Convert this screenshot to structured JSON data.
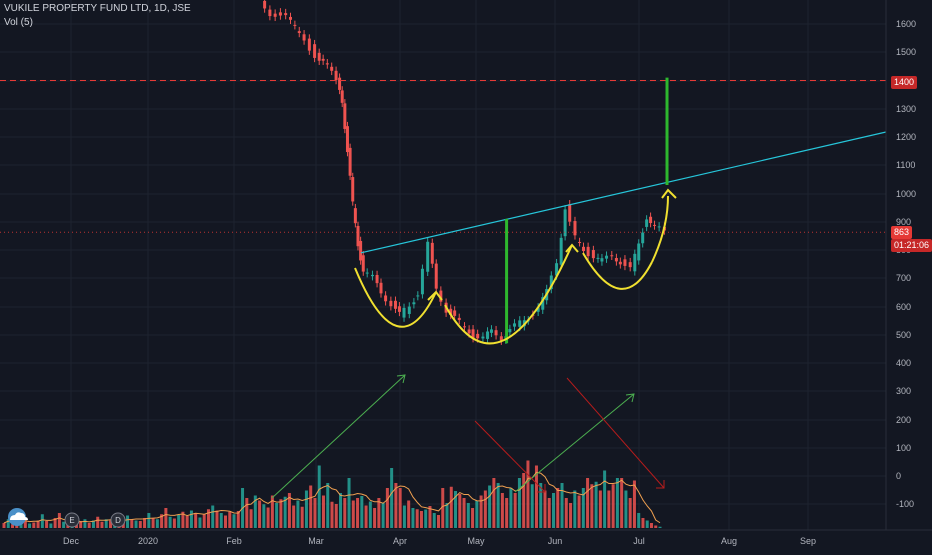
{
  "header": {
    "symbol_title": "VUKILE PROPERTY FUND LTD, 1D, JSE",
    "volume_label": "Vol (5)"
  },
  "price_badges": {
    "target": "1400",
    "last": "863",
    "countdown": "01:21:06"
  },
  "colors": {
    "background": "#131722",
    "grid": "#1e2330",
    "up": "#26a69a",
    "down": "#ef5350",
    "trendline": "#26c6da",
    "pattern": "#f0e030",
    "target_bar": "#2eb82e",
    "target_line": "#e53935",
    "volume_ma": "#f0a050",
    "arrow_green": "#4caf50",
    "arrow_red": "#b71c1c"
  },
  "chart_data": [
    {
      "type": "candlestick",
      "title": "VUKILE PROPERTY FUND LTD, 1D, JSE",
      "price_axis_ticks": [
        "1600",
        "1500",
        "1400",
        "1300",
        "1200",
        "1100",
        "1000",
        "900",
        "800",
        "700",
        "600",
        "500",
        "400",
        "300",
        "200",
        "100",
        "0",
        "-100"
      ],
      "price_range": [
        -200,
        1700
      ],
      "time_axis_ticks": [
        "Dec",
        "2020",
        "Feb",
        "Mar",
        "Apr",
        "May",
        "Jun",
        "Jul",
        "Aug",
        "Sep"
      ],
      "grid": true,
      "last_price": 863,
      "resistance_level": 1400,
      "neckline": {
        "points": [
          [
            "2020-03-19",
            790
          ],
          [
            "2020-05-13",
            910
          ],
          [
            "2020-06-05",
            955
          ],
          [
            "2020-07-13",
            1030
          ]
        ]
      },
      "pattern_targets": [
        {
          "date": "2020-05-13",
          "from": 910,
          "to": 470
        },
        {
          "date": "2020-07-13",
          "from": 1030,
          "to": 1410
        }
      ],
      "series": [
        {
          "name": "price",
          "points": [
            [
              "2020-02-10",
              1680
            ],
            [
              "2020-02-14",
              1640
            ],
            [
              "2020-02-20",
              1620
            ],
            [
              "2020-02-25",
              1570
            ],
            [
              "2020-03-02",
              1490
            ],
            [
              "2020-03-05",
              1470
            ],
            [
              "2020-03-10",
              1400
            ],
            [
              "2020-03-12",
              1330
            ],
            [
              "2020-03-14",
              1150
            ],
            [
              "2020-03-16",
              960
            ],
            [
              "2020-03-18",
              820
            ],
            [
              "2020-03-20",
              730
            ],
            [
              "2020-03-24",
              700
            ],
            [
              "2020-03-27",
              650
            ],
            [
              "2020-03-31",
              610
            ],
            [
              "2020-04-03",
              570
            ],
            [
              "2020-04-07",
              600
            ],
            [
              "2020-04-10",
              650
            ],
            [
              "2020-04-14",
              820
            ],
            [
              "2020-04-17",
              660
            ],
            [
              "2020-04-21",
              590
            ],
            [
              "2020-04-24",
              560
            ],
            [
              "2020-04-28",
              520
            ],
            [
              "2020-05-01",
              500
            ],
            [
              "2020-05-05",
              490
            ],
            [
              "2020-05-08",
              510
            ],
            [
              "2020-05-12",
              490
            ],
            [
              "2020-05-15",
              520
            ],
            [
              "2020-05-19",
              540
            ],
            [
              "2020-05-22",
              560
            ],
            [
              "2020-05-26",
              600
            ],
            [
              "2020-05-29",
              650
            ],
            [
              "2020-06-02",
              760
            ],
            [
              "2020-06-05",
              950
            ],
            [
              "2020-06-09",
              840
            ],
            [
              "2020-06-12",
              800
            ],
            [
              "2020-06-16",
              780
            ],
            [
              "2020-06-19",
              760
            ],
            [
              "2020-06-23",
              780
            ],
            [
              "2020-06-26",
              760
            ],
            [
              "2020-06-30",
              730
            ],
            [
              "2020-07-03",
              820
            ],
            [
              "2020-07-06",
              920
            ],
            [
              "2020-07-09",
              880
            ],
            [
              "2020-07-13",
              863
            ]
          ]
        }
      ]
    },
    {
      "type": "bar",
      "title": "Vol (5)",
      "y_ticks": [
        "300",
        "200",
        "100",
        "0",
        "-100"
      ],
      "series": [
        {
          "name": "volume",
          "values": [
            20,
            35,
            15,
            30,
            25,
            40,
            18,
            22,
            30,
            55,
            28,
            18,
            40,
            60,
            25,
            30,
            18,
            22,
            28,
            35,
            20,
            30,
            45,
            25,
            35,
            30,
            18,
            28,
            38,
            50,
            35,
            30,
            28,
            40,
            60,
            40,
            35,
            55,
            80,
            45,
            38,
            52,
            65,
            48,
            70,
            60,
            42,
            55,
            75,
            90,
            70,
            60,
            50,
            65,
            55,
            68,
            160,
            120,
            75,
            130,
            110,
            95,
            82,
            130,
            100,
            115,
            125,
            140,
            90,
            110,
            85,
            150,
            170,
            120,
            250,
            130,
            180,
            105,
            96,
            140,
            120,
            200,
            110,
            120,
            128,
            90,
            106,
            80,
            120,
            100,
            160,
            240,
            180,
            160,
            90,
            110,
            80,
            75,
            68,
            74,
            88,
            60,
            52,
            160,
            100,
            165,
            148,
            136,
            120,
            100,
            80,
            110,
            130,
            150,
            170,
            200,
            180,
            140,
            120,
            160,
            140,
            200,
            220,
            270,
            175,
            250,
            180,
            150,
            120,
            140,
            160,
            180,
            120,
            100,
            150,
            130,
            160,
            200,
            175,
            185,
            150,
            230,
            150,
            175,
            200,
            200,
            150,
            120,
            190,
            60,
            40,
            30,
            20,
            10,
            5
          ]
        }
      ]
    }
  ],
  "icons": [
    "weather-cloud-icon",
    "earnings-event-icon",
    "dividend-event-icon"
  ],
  "event_markers": [
    "E",
    "D"
  ]
}
